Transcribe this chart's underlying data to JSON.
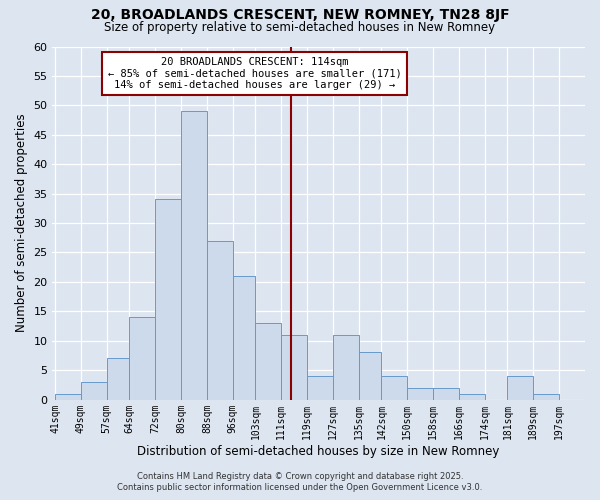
{
  "title": "20, BROADLANDS CRESCENT, NEW ROMNEY, TN28 8JF",
  "subtitle": "Size of property relative to semi-detached houses in New Romney",
  "xlabel": "Distribution of semi-detached houses by size in New Romney",
  "ylabel": "Number of semi-detached properties",
  "footer1": "Contains HM Land Registry data © Crown copyright and database right 2025.",
  "footer2": "Contains public sector information licensed under the Open Government Licence v3.0.",
  "annotation_title": "20 BROADLANDS CRESCENT: 114sqm",
  "annotation_line1": "← 85% of semi-detached houses are smaller (171)",
  "annotation_line2": "14% of semi-detached houses are larger (29) →",
  "property_size": 114,
  "bar_color": "#ccdaeb",
  "bar_edge_color": "#6699cc",
  "vline_color": "#8b0000",
  "annotation_box_color": "#8b0000",
  "background_color": "#dde5f0",
  "bin_labels": [
    "41sqm",
    "49sqm",
    "57sqm",
    "64sqm",
    "72sqm",
    "80sqm",
    "88sqm",
    "96sqm",
    "103sqm",
    "111sqm",
    "119sqm",
    "127sqm",
    "135sqm",
    "142sqm",
    "150sqm",
    "158sqm",
    "166sqm",
    "174sqm",
    "181sqm",
    "189sqm",
    "197sqm"
  ],
  "bin_edges": [
    41,
    49,
    57,
    64,
    72,
    80,
    88,
    96,
    103,
    111,
    119,
    127,
    135,
    142,
    150,
    158,
    166,
    174,
    181,
    189,
    197
  ],
  "counts": [
    1,
    3,
    7,
    14,
    34,
    49,
    27,
    21,
    13,
    11,
    4,
    11,
    8,
    4,
    2,
    2,
    1,
    0,
    4,
    1
  ],
  "ylim": [
    0,
    60
  ],
  "yticks": [
    0,
    5,
    10,
    15,
    20,
    25,
    30,
    35,
    40,
    45,
    50,
    55,
    60
  ]
}
